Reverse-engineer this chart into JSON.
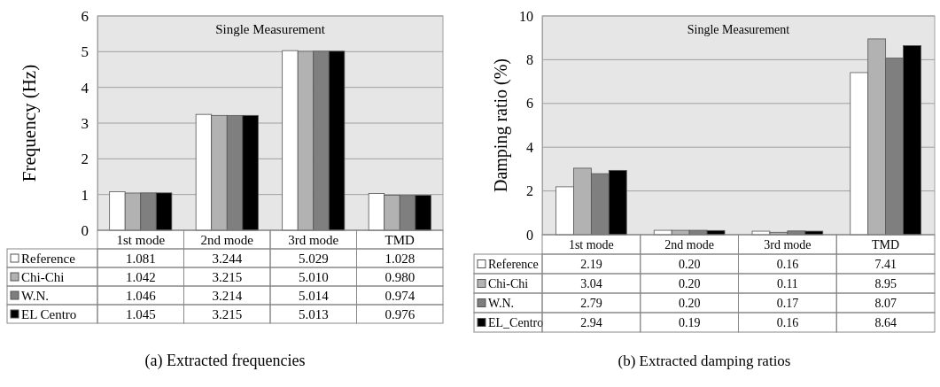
{
  "chart_data": [
    {
      "type": "bar",
      "title": "(a) Extracted frequencies",
      "ylabel": "Frequency (Hz)",
      "annotations": [
        "Single Measurement"
      ],
      "categories": [
        "1st mode",
        "2nd mode",
        "3rd mode",
        "TMD"
      ],
      "ylim": [
        0,
        6
      ],
      "yticks": [
        0,
        1,
        2,
        3,
        4,
        5,
        6
      ],
      "grid": "y",
      "legend": "bottom",
      "series": [
        {
          "name": "Reference",
          "color": "#ffffff",
          "values": [
            1.081,
            3.244,
            5.029,
            1.028
          ],
          "value_labels": [
            "1.081",
            "3.244",
            "5.029",
            "1.028"
          ]
        },
        {
          "name": "Chi-Chi",
          "color": "#b2b2b2",
          "values": [
            1.042,
            3.215,
            5.01,
            0.98
          ],
          "value_labels": [
            "1.042",
            "3.215",
            "5.010",
            "0.980"
          ]
        },
        {
          "name": "W.N.",
          "color": "#7f7f7f",
          "values": [
            1.046,
            3.214,
            5.014,
            0.974
          ],
          "value_labels": [
            "1.046",
            "3.214",
            "5.014",
            "0.974"
          ]
        },
        {
          "name": "EL Centro",
          "color": "#000000",
          "values": [
            1.045,
            3.215,
            5.013,
            0.976
          ],
          "value_labels": [
            "1.045",
            "3.215",
            "5.013",
            "0.976"
          ]
        }
      ]
    },
    {
      "type": "bar",
      "title": "(b) Extracted damping ratios",
      "ylabel": "Damping ratio (%)",
      "annotations": [
        "Single Measurement"
      ],
      "categories": [
        "1st mode",
        "2nd mode",
        "3rd mode",
        "TMD"
      ],
      "ylim": [
        0,
        10
      ],
      "yticks": [
        0,
        2,
        4,
        6,
        8,
        10
      ],
      "grid": "y",
      "legend": "bottom",
      "series": [
        {
          "name": "Reference",
          "color": "#ffffff",
          "values": [
            2.19,
            0.2,
            0.16,
            7.41
          ],
          "value_labels": [
            "2.19",
            "0.20",
            "0.16",
            "7.41"
          ]
        },
        {
          "name": "Chi-Chi",
          "color": "#b2b2b2",
          "values": [
            3.04,
            0.2,
            0.11,
            8.95
          ],
          "value_labels": [
            "3.04",
            "0.20",
            "0.11",
            "8.95"
          ]
        },
        {
          "name": "W.N.",
          "color": "#7f7f7f",
          "values": [
            2.79,
            0.2,
            0.17,
            8.07
          ],
          "value_labels": [
            "2.79",
            "0.20",
            "0.17",
            "8.07"
          ]
        },
        {
          "name": "EL_Centro",
          "color": "#000000",
          "values": [
            2.94,
            0.19,
            0.16,
            8.64
          ],
          "value_labels": [
            "2.94",
            "0.19",
            "0.16",
            "8.64"
          ]
        }
      ]
    }
  ]
}
